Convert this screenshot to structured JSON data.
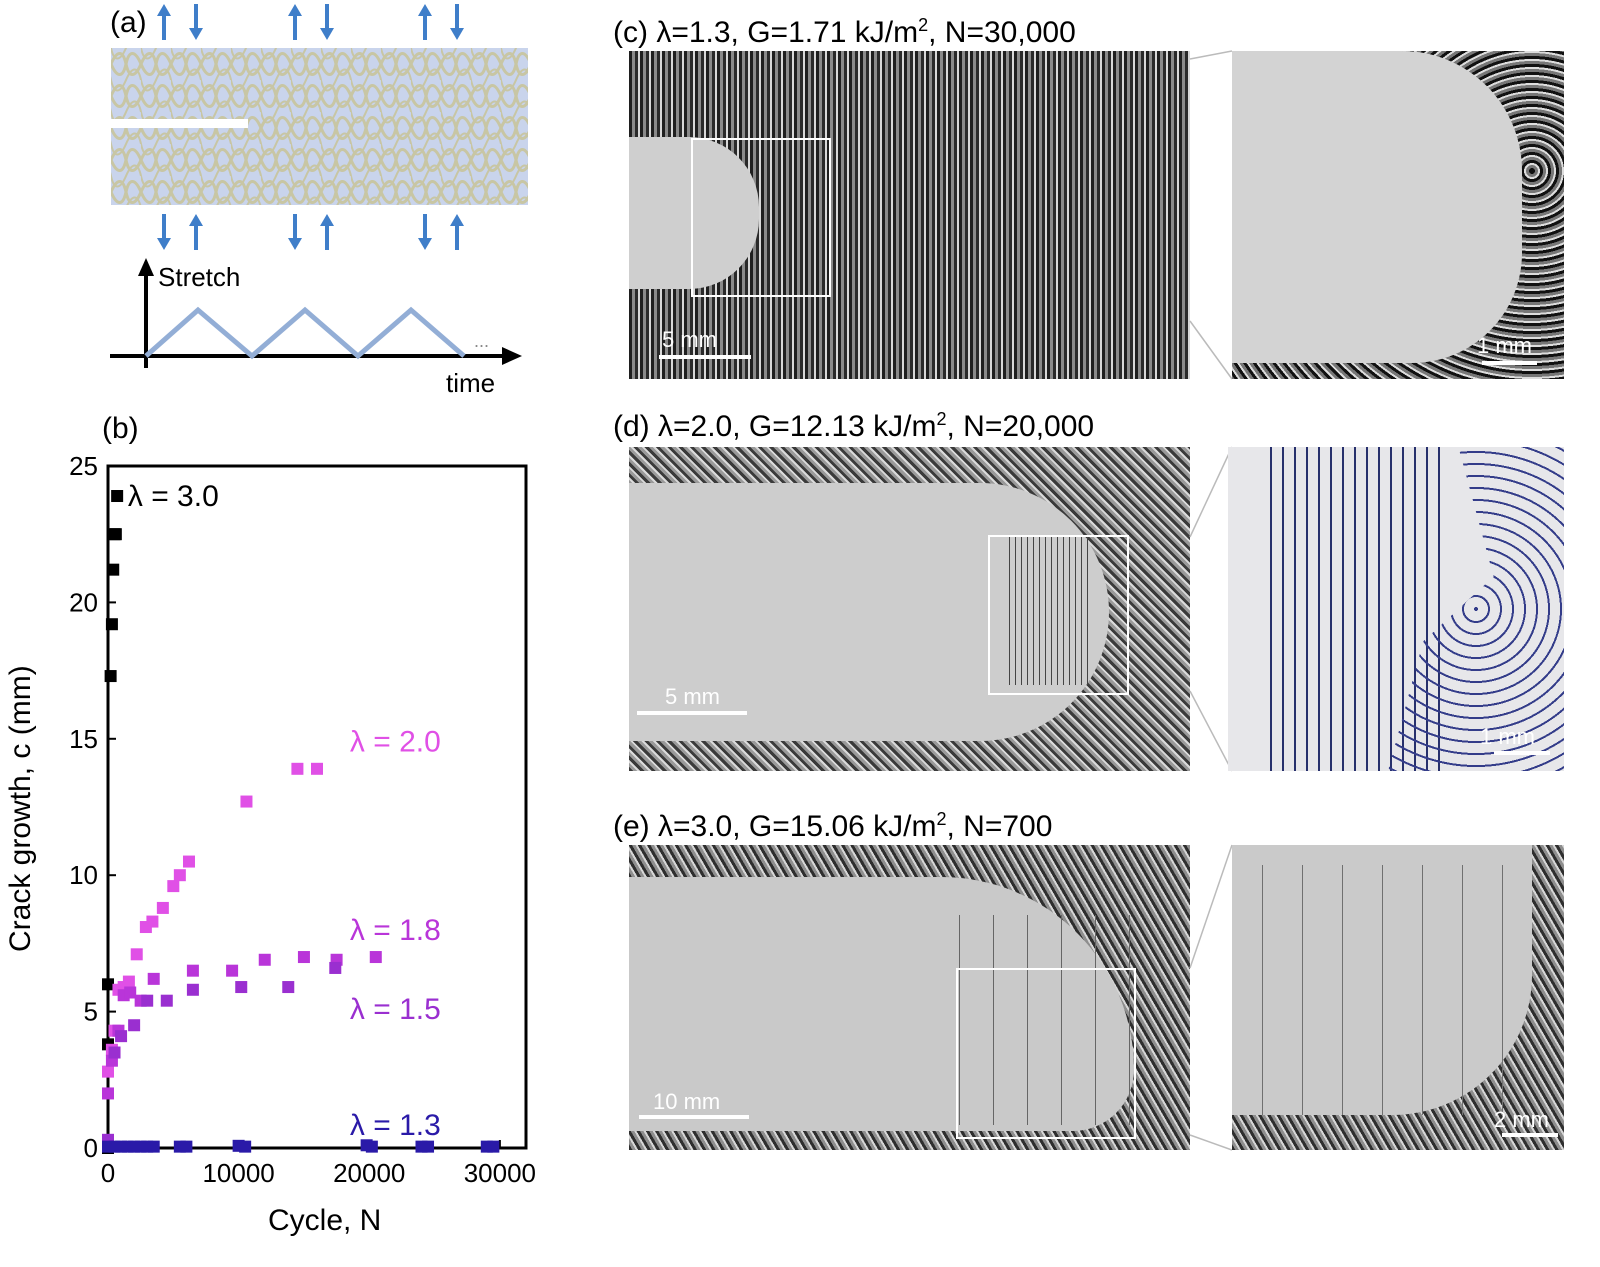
{
  "panel_a": {
    "label": "(a)",
    "ylabel": "Stretch",
    "xlabel": "time",
    "ellipsis": "...",
    "colors": {
      "fabric": "#c9d4ec",
      "yarn": "#c8c6a4",
      "arrow": "#3f7ec9",
      "wave": "#93aed6"
    }
  },
  "panel_b": {
    "label": "(b)"
  },
  "panel_c": {
    "header": {
      "prefix": "(c) λ=1.3,   G=1.71 kJ/m",
      "exp": "2",
      "suffix": ", N=30,000"
    },
    "scale_main": "5 mm",
    "scale_zoom": "1 mm"
  },
  "panel_d": {
    "header": {
      "prefix": "(d) λ=2.0,   G=12.13 kJ/m",
      "exp": "2",
      "suffix": ", N=20,000"
    },
    "scale_main": "5 mm",
    "scale_zoom": "1 mm"
  },
  "panel_e": {
    "header": {
      "prefix": "(e) λ=3.0,   G=15.06 kJ/m",
      "exp": "2",
      "suffix": ", N=700"
    },
    "scale_main": "10 mm",
    "scale_zoom": "2 mm"
  },
  "chart_data": {
    "type": "scatter",
    "xlabel": "Cycle, N",
    "ylabel": "Crack growth, c (mm)",
    "xlim": [
      0,
      32000
    ],
    "ylim": [
      0,
      25
    ],
    "xticks": [
      0,
      10000,
      20000,
      30000
    ],
    "yticks": [
      0,
      5,
      10,
      15,
      20,
      25
    ],
    "xtick_labels": [
      "0",
      "10000",
      "20000",
      "30000"
    ],
    "ytick_labels": [
      "0",
      "5",
      "10",
      "15",
      "20",
      "25"
    ],
    "grid": false,
    "legend": "inline labels",
    "series": [
      {
        "name": "λ = 3.0",
        "color": "#000000",
        "x": [
          0,
          0,
          0,
          200,
          300,
          400,
          500,
          600,
          700
        ],
        "y": [
          0,
          3.8,
          6.0,
          17.3,
          19.2,
          21.2,
          22.5,
          22.5,
          23.9
        ]
      },
      {
        "name": "λ = 2.0",
        "color": "#e050e6",
        "x": [
          0,
          300,
          500,
          800,
          1200,
          1600,
          2200,
          2900,
          3400,
          4200,
          5000,
          5500,
          6200,
          10600,
          14500,
          16000
        ],
        "y": [
          2.8,
          3.6,
          4.3,
          5.8,
          5.9,
          6.1,
          7.1,
          8.1,
          8.3,
          8.8,
          9.6,
          10.0,
          10.5,
          12.7,
          13.9,
          13.9
        ]
      },
      {
        "name": "λ = 1.8",
        "color": "#b935d9",
        "x": [
          0,
          300,
          800,
          1200,
          1700,
          2500,
          3500,
          6500,
          9500,
          12000,
          15000,
          17500,
          20500
        ],
        "y": [
          2.0,
          3.2,
          4.3,
          5.6,
          5.7,
          5.4,
          6.2,
          6.5,
          6.5,
          6.9,
          7.0,
          6.9,
          7.0
        ]
      },
      {
        "name": "λ = 1.5",
        "color": "#9a2fd0",
        "x": [
          0,
          500,
          1000,
          2000,
          3000,
          4500,
          6500,
          10200,
          13800,
          17400
        ],
        "y": [
          0.3,
          3.5,
          4.1,
          4.5,
          5.4,
          5.4,
          5.8,
          5.9,
          5.9,
          6.6
        ]
      },
      {
        "name": "λ = 1.3",
        "color": "#2a1aa8",
        "x": [
          0,
          500,
          1000,
          1500,
          2000,
          2500,
          3000,
          3500,
          5500,
          6000,
          10000,
          10500,
          19800,
          20200,
          24000,
          24500,
          29000,
          29500
        ],
        "y": [
          0.05,
          0.05,
          0.05,
          0.05,
          0.05,
          0.05,
          0.05,
          0.05,
          0.05,
          0.05,
          0.08,
          0.05,
          0.1,
          0.05,
          0.05,
          0.05,
          0.05,
          0.05
        ]
      }
    ]
  }
}
